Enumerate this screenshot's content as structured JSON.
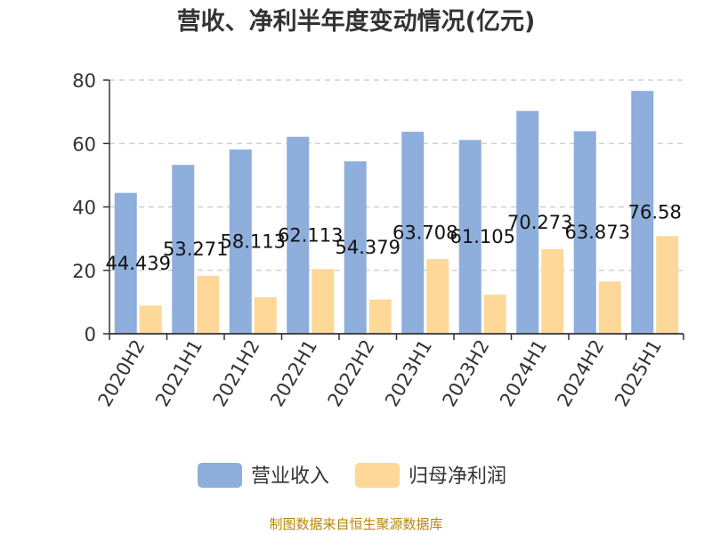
{
  "chart_data": {
    "type": "bar",
    "title": "营收、净利半年度变动情况(亿元)",
    "categories": [
      "2020H2",
      "2021H1",
      "2021H2",
      "2022H1",
      "2022H2",
      "2023H1",
      "2023H2",
      "2024H1",
      "2024H2",
      "2025H1"
    ],
    "series": [
      {
        "name": "营业收入",
        "color": "#8eaedc",
        "values": [
          44.439,
          53.271,
          58.113,
          62.113,
          54.379,
          63.708,
          61.105,
          70.273,
          63.873,
          76.58
        ],
        "labels": [
          "44.439",
          "53.271",
          "58.113",
          "62.113",
          "54.379",
          "63.708",
          "61.105",
          "70.273",
          "63.873",
          "76.58"
        ]
      },
      {
        "name": "归母净利润",
        "color": "#fed898",
        "values": [
          8.9,
          18.3,
          11.5,
          20.4,
          10.8,
          23.6,
          12.3,
          26.7,
          16.5,
          30.8
        ]
      }
    ],
    "ylim": [
      0,
      80
    ],
    "yticks": [
      0,
      20,
      40,
      60,
      80
    ],
    "grid": true,
    "legend": "bottom"
  },
  "footer": {
    "source": "制图数据来自恒生聚源数据库"
  }
}
